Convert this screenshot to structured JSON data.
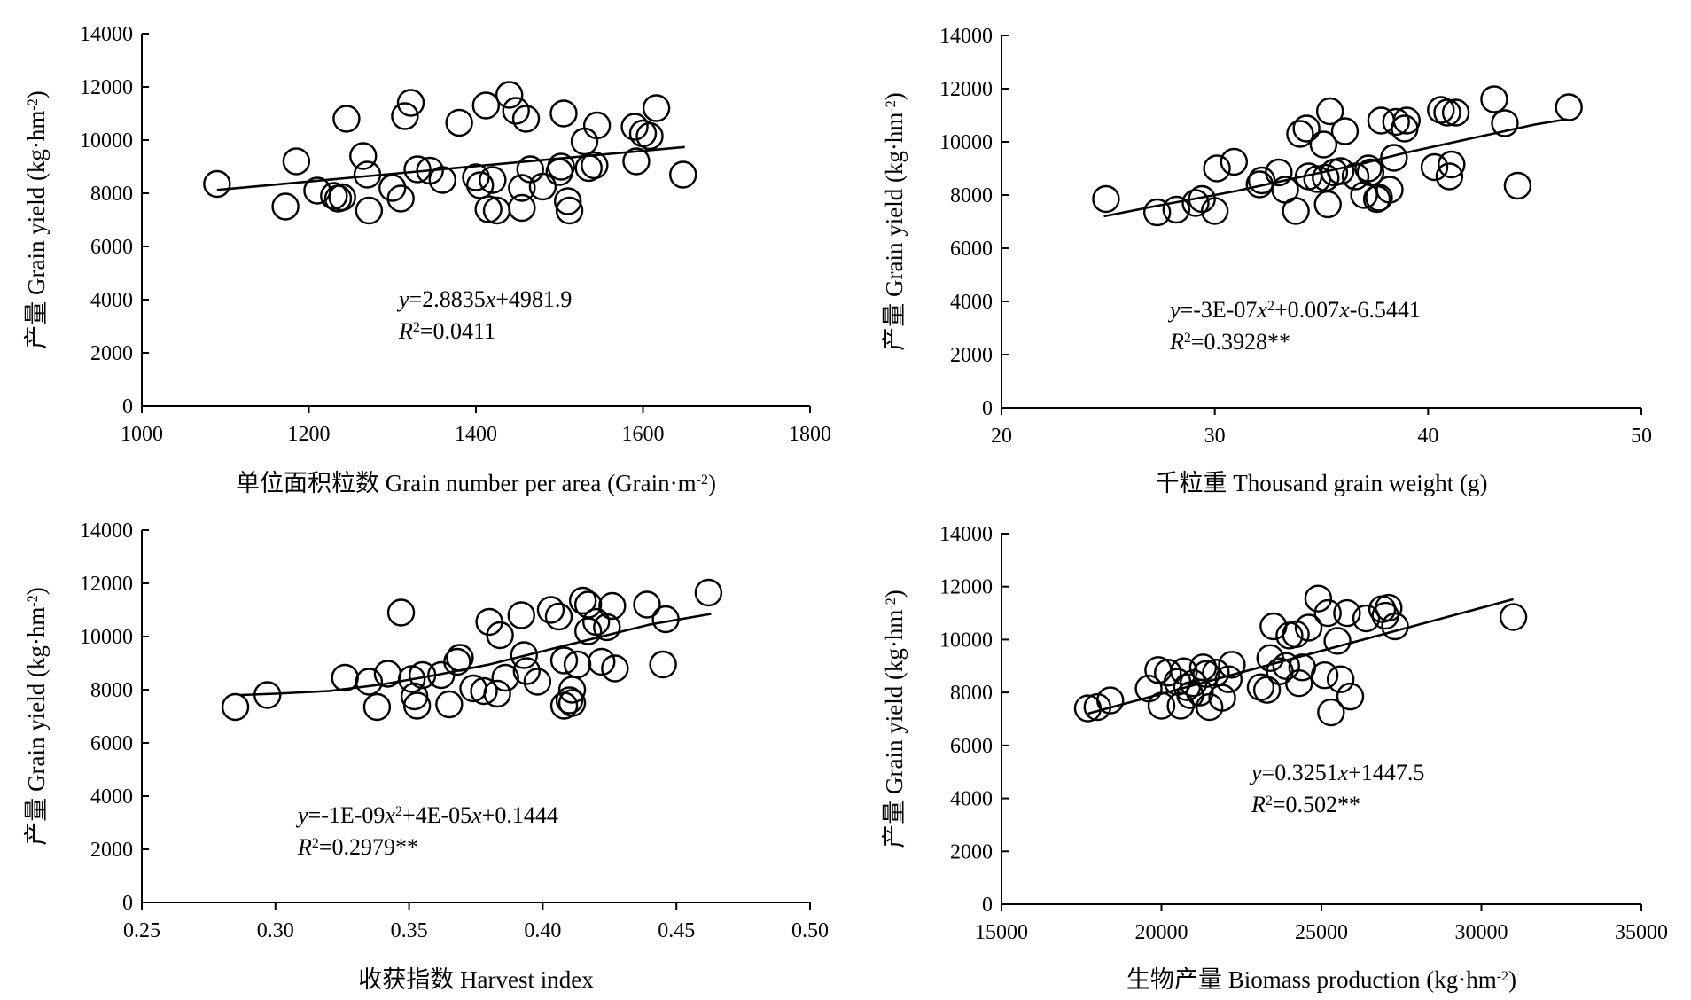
{
  "chart_data": [
    {
      "type": "scatter",
      "xlabel": [
        "单位面积粒数 Grain number per area (Grain·m",
        "-2",
        ")"
      ],
      "ylabel": [
        "产量 Grain yield (kg·hm",
        "-2",
        ")"
      ],
      "xlim": [
        1000,
        1800
      ],
      "ylim": [
        0,
        14000
      ],
      "xticks": [
        1000,
        1200,
        1400,
        1600,
        1800
      ],
      "xtick_labels": [
        "1000",
        "1200",
        "1400",
        "1600",
        "1800"
      ],
      "yticks": [
        0,
        2000,
        4000,
        6000,
        8000,
        10000,
        12000,
        14000
      ],
      "ytick_labels": [
        "0",
        "2000",
        "4000",
        "6000",
        "8000",
        "10000",
        "12000",
        "14000"
      ],
      "equation": {
        "line1": [
          {
            "t": "y",
            "i": true
          },
          {
            "t": "=2.8835"
          },
          {
            "t": "x",
            "i": true
          },
          {
            "t": "+4981.9"
          }
        ],
        "line2": [
          {
            "t": "R",
            "i": true
          },
          {
            "t": "2",
            "sup": true
          },
          {
            "t": "=0.0411"
          }
        ]
      },
      "trend": {
        "kind": "linear",
        "coef": [
          4981.9,
          2.8835
        ],
        "x_range": [
          1090,
          1650
        ]
      },
      "points": [
        [
          1090,
          8350
        ],
        [
          1172,
          7500
        ],
        [
          1185,
          9200
        ],
        [
          1210,
          8100
        ],
        [
          1230,
          7900
        ],
        [
          1235,
          7800
        ],
        [
          1240,
          7850
        ],
        [
          1245,
          10800
        ],
        [
          1265,
          9400
        ],
        [
          1270,
          8700
        ],
        [
          1272,
          7350
        ],
        [
          1300,
          8200
        ],
        [
          1310,
          7800
        ],
        [
          1315,
          10900
        ],
        [
          1322,
          11400
        ],
        [
          1330,
          8900
        ],
        [
          1345,
          8850
        ],
        [
          1360,
          8500
        ],
        [
          1380,
          10650
        ],
        [
          1400,
          8600
        ],
        [
          1405,
          8300
        ],
        [
          1412,
          11300
        ],
        [
          1415,
          7400
        ],
        [
          1420,
          8500
        ],
        [
          1425,
          7350
        ],
        [
          1440,
          11700
        ],
        [
          1448,
          11100
        ],
        [
          1455,
          7450
        ],
        [
          1455,
          8200
        ],
        [
          1460,
          10800
        ],
        [
          1465,
          8900
        ],
        [
          1480,
          8250
        ],
        [
          1500,
          8800
        ],
        [
          1502,
          9000
        ],
        [
          1505,
          11000
        ],
        [
          1510,
          7700
        ],
        [
          1512,
          7350
        ],
        [
          1530,
          9950
        ],
        [
          1535,
          8950
        ],
        [
          1542,
          9050
        ],
        [
          1545,
          10550
        ],
        [
          1590,
          10500
        ],
        [
          1592,
          9200
        ],
        [
          1600,
          10250
        ],
        [
          1608,
          10150
        ],
        [
          1616,
          11200
        ],
        [
          1648,
          8700
        ]
      ]
    },
    {
      "type": "scatter",
      "xlabel": [
        "千粒重 Thousand grain weight (g)"
      ],
      "ylabel": [
        "产量 Grain yield (kg·hm",
        "-2",
        ")"
      ],
      "xlim": [
        20,
        50
      ],
      "ylim": [
        0,
        14000
      ],
      "xticks": [
        20,
        30,
        40,
        50
      ],
      "xtick_labels": [
        "20",
        "30",
        "40",
        "50"
      ],
      "yticks": [
        0,
        2000,
        4000,
        6000,
        8000,
        10000,
        12000,
        14000
      ],
      "ytick_labels": [
        "0",
        "2000",
        "4000",
        "6000",
        "8000",
        "10000",
        "12000",
        "14000"
      ],
      "equation": {
        "line1": [
          {
            "t": "y",
            "i": true
          },
          {
            "t": "=-3E-07"
          },
          {
            "t": "x",
            "i": true
          },
          {
            "t": "2",
            "sup": true
          },
          {
            "t": "+0.007"
          },
          {
            "t": "x",
            "i": true
          },
          {
            "t": "-6.5441"
          }
        ],
        "line2": [
          {
            "t": "R",
            "i": true
          },
          {
            "t": "2",
            "sup": true
          },
          {
            "t": "=0.3928**"
          }
        ]
      },
      "trend": {
        "kind": "series",
        "x": [
          24.8,
          27,
          29,
          31,
          33,
          35,
          37,
          39,
          41,
          43,
          45,
          46.5
        ],
        "y": [
          7200,
          7550,
          7850,
          8150,
          8500,
          8850,
          9200,
          9600,
          9950,
          10300,
          10650,
          10850
        ]
      },
      "points": [
        [
          24.9,
          7850
        ],
        [
          27.3,
          7350
        ],
        [
          28.2,
          7450
        ],
        [
          29.1,
          7700
        ],
        [
          29.4,
          7850
        ],
        [
          30.0,
          7400
        ],
        [
          30.1,
          9000
        ],
        [
          30.9,
          9250
        ],
        [
          32.1,
          8400
        ],
        [
          32.2,
          8550
        ],
        [
          33.0,
          8850
        ],
        [
          33.3,
          8200
        ],
        [
          33.8,
          7400
        ],
        [
          34.0,
          10300
        ],
        [
          34.3,
          10500
        ],
        [
          34.4,
          8700
        ],
        [
          34.8,
          8600
        ],
        [
          35.1,
          9900
        ],
        [
          35.2,
          8650
        ],
        [
          35.3,
          7650
        ],
        [
          35.4,
          11150
        ],
        [
          35.6,
          8850
        ],
        [
          35.9,
          8900
        ],
        [
          36.1,
          10400
        ],
        [
          36.6,
          8700
        ],
        [
          37.0,
          8000
        ],
        [
          37.2,
          9000
        ],
        [
          37.3,
          8850
        ],
        [
          37.6,
          7850
        ],
        [
          37.7,
          7900
        ],
        [
          37.8,
          10800
        ],
        [
          38.2,
          8200
        ],
        [
          38.4,
          9400
        ],
        [
          38.5,
          10750
        ],
        [
          38.9,
          10500
        ],
        [
          39.0,
          10800
        ],
        [
          40.3,
          9050
        ],
        [
          40.6,
          11200
        ],
        [
          40.9,
          11100
        ],
        [
          41.0,
          8700
        ],
        [
          41.1,
          9150
        ],
        [
          41.3,
          11100
        ],
        [
          43.1,
          11600
        ],
        [
          43.6,
          10700
        ],
        [
          44.2,
          8350
        ],
        [
          46.6,
          11300
        ]
      ]
    },
    {
      "type": "scatter",
      "xlabel": [
        "收获指数 Harvest index"
      ],
      "ylabel": [
        "产量 Grain yield (kg·hm",
        "-2",
        ")"
      ],
      "xlim": [
        0.25,
        0.5
      ],
      "ylim": [
        0,
        14000
      ],
      "xticks": [
        0.25,
        0.3,
        0.35,
        0.4,
        0.45,
        0.5
      ],
      "xtick_labels": [
        "0.25",
        "0.30",
        "0.35",
        "0.40",
        "0.45",
        "0.50"
      ],
      "yticks": [
        0,
        2000,
        4000,
        6000,
        8000,
        10000,
        12000,
        14000
      ],
      "ytick_labels": [
        "0",
        "2000",
        "4000",
        "6000",
        "8000",
        "10000",
        "12000",
        "14000"
      ],
      "equation": {
        "line1": [
          {
            "t": "y",
            "i": true
          },
          {
            "t": "=-1E-09"
          },
          {
            "t": "x",
            "i": true
          },
          {
            "t": "2",
            "sup": true
          },
          {
            "t": "+4E-05"
          },
          {
            "t": "x",
            "i": true
          },
          {
            "t": "+0.1444"
          }
        ],
        "line2": [
          {
            "t": "R",
            "i": true
          },
          {
            "t": "2",
            "sup": true
          },
          {
            "t": "=0.2979**"
          }
        ]
      },
      "trend": {
        "kind": "series",
        "x": [
          0.287,
          0.3,
          0.32,
          0.34,
          0.36,
          0.38,
          0.4,
          0.42,
          0.44,
          0.463
        ],
        "y": [
          7800,
          7850,
          7950,
          8200,
          8550,
          8950,
          9450,
          9950,
          10450,
          10850
        ]
      },
      "points": [
        [
          0.285,
          7350
        ],
        [
          0.297,
          7800
        ],
        [
          0.326,
          8450
        ],
        [
          0.335,
          8300
        ],
        [
          0.338,
          7350
        ],
        [
          0.342,
          8600
        ],
        [
          0.347,
          10900
        ],
        [
          0.351,
          8400
        ],
        [
          0.352,
          7750
        ],
        [
          0.353,
          7400
        ],
        [
          0.355,
          8550
        ],
        [
          0.362,
          8550
        ],
        [
          0.365,
          7450
        ],
        [
          0.368,
          9050
        ],
        [
          0.369,
          9200
        ],
        [
          0.374,
          8050
        ],
        [
          0.378,
          7950
        ],
        [
          0.38,
          10550
        ],
        [
          0.383,
          7850
        ],
        [
          0.384,
          10050
        ],
        [
          0.386,
          8450
        ],
        [
          0.392,
          10800
        ],
        [
          0.393,
          9300
        ],
        [
          0.394,
          8700
        ],
        [
          0.398,
          8300
        ],
        [
          0.403,
          11000
        ],
        [
          0.406,
          10750
        ],
        [
          0.408,
          9100
        ],
        [
          0.408,
          7400
        ],
        [
          0.41,
          7600
        ],
        [
          0.411,
          7500
        ],
        [
          0.411,
          8000
        ],
        [
          0.413,
          8950
        ],
        [
          0.415,
          11350
        ],
        [
          0.417,
          10200
        ],
        [
          0.417,
          11200
        ],
        [
          0.42,
          10550
        ],
        [
          0.422,
          9050
        ],
        [
          0.424,
          10350
        ],
        [
          0.426,
          11150
        ],
        [
          0.427,
          8800
        ],
        [
          0.439,
          11200
        ],
        [
          0.445,
          8950
        ],
        [
          0.446,
          10650
        ],
        [
          0.462,
          11650
        ]
      ]
    },
    {
      "type": "scatter",
      "xlabel": [
        "生物产量 Biomass production (kg·hm",
        "-2",
        ")"
      ],
      "ylabel": [
        "产量 Grain yield (kg·hm",
        "-2",
        ")"
      ],
      "xlim": [
        15000,
        35000
      ],
      "ylim": [
        0,
        14000
      ],
      "xticks": [
        15000,
        20000,
        25000,
        30000,
        35000
      ],
      "xtick_labels": [
        "15000",
        "20000",
        "25000",
        "30000",
        "35000"
      ],
      "yticks": [
        0,
        2000,
        4000,
        6000,
        8000,
        10000,
        12000,
        14000
      ],
      "ytick_labels": [
        "0",
        "2000",
        "4000",
        "6000",
        "8000",
        "10000",
        "12000",
        "14000"
      ],
      "equation": {
        "line1": [
          {
            "t": "y",
            "i": true
          },
          {
            "t": "=0.3251"
          },
          {
            "t": "x",
            "i": true
          },
          {
            "t": "+1447.5"
          }
        ],
        "line2": [
          {
            "t": "R",
            "i": true
          },
          {
            "t": "2",
            "sup": true
          },
          {
            "t": "=0.502**"
          }
        ]
      },
      "trend": {
        "kind": "linear",
        "coef": [
          1447.5,
          0.3251
        ],
        "x_range": [
          17700,
          31000
        ]
      },
      "points": [
        [
          17700,
          7400
        ],
        [
          18000,
          7450
        ],
        [
          18400,
          7700
        ],
        [
          19600,
          8150
        ],
        [
          19900,
          8850
        ],
        [
          20000,
          7500
        ],
        [
          20200,
          8750
        ],
        [
          20500,
          8400
        ],
        [
          20600,
          7500
        ],
        [
          20700,
          8800
        ],
        [
          20800,
          8200
        ],
        [
          20900,
          7900
        ],
        [
          21000,
          8350
        ],
        [
          21200,
          8000
        ],
        [
          21300,
          8950
        ],
        [
          21400,
          8700
        ],
        [
          21500,
          7450
        ],
        [
          21700,
          8750
        ],
        [
          21900,
          7800
        ],
        [
          22100,
          8500
        ],
        [
          22200,
          9050
        ],
        [
          23100,
          8200
        ],
        [
          23300,
          8100
        ],
        [
          23400,
          9300
        ],
        [
          23500,
          10500
        ],
        [
          23700,
          8800
        ],
        [
          23900,
          9000
        ],
        [
          24000,
          10150
        ],
        [
          24200,
          10200
        ],
        [
          24300,
          8350
        ],
        [
          24400,
          8950
        ],
        [
          24600,
          10450
        ],
        [
          24900,
          11550
        ],
        [
          25100,
          8650
        ],
        [
          25200,
          11000
        ],
        [
          25300,
          7250
        ],
        [
          25500,
          9950
        ],
        [
          25600,
          8500
        ],
        [
          25800,
          11000
        ],
        [
          25900,
          7850
        ],
        [
          26400,
          10800
        ],
        [
          26900,
          11150
        ],
        [
          27000,
          10900
        ],
        [
          27100,
          11200
        ],
        [
          27300,
          10500
        ],
        [
          31000,
          10850
        ]
      ]
    }
  ]
}
